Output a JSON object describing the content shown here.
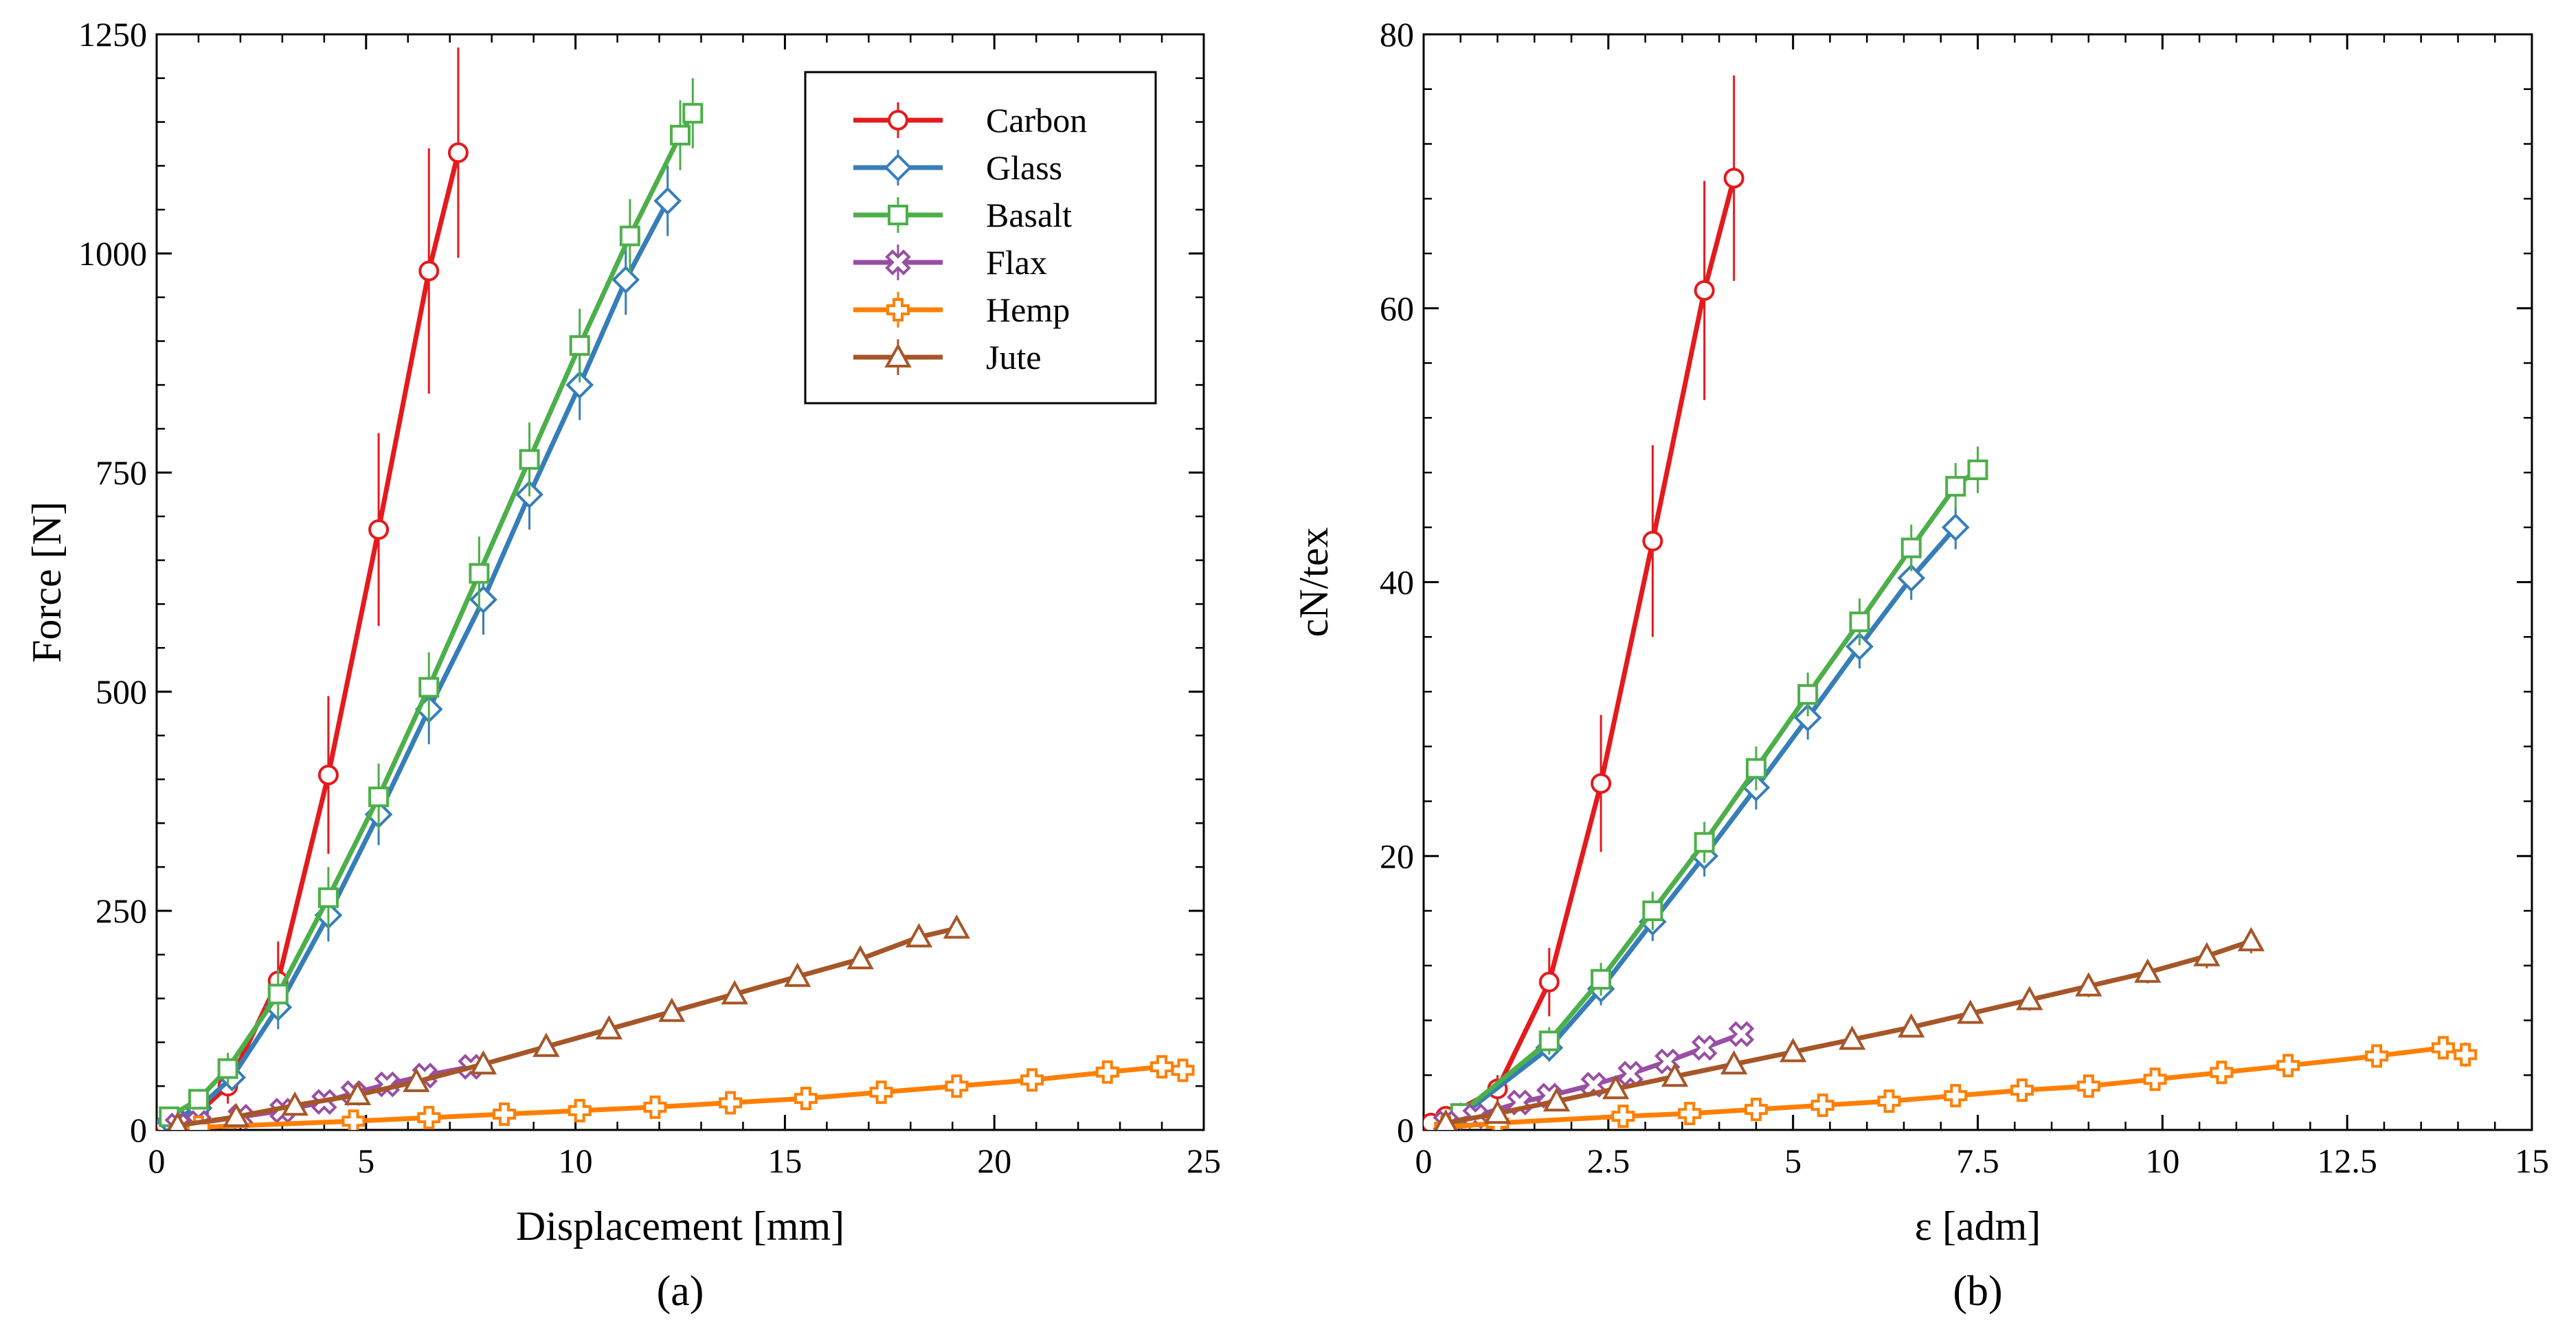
{
  "legend": {
    "placement": "top-right",
    "entries": [
      {
        "name": "Carbon",
        "color": "#e41a1c",
        "marker": "circle"
      },
      {
        "name": "Glass",
        "color": "#377eb8",
        "marker": "diamond"
      },
      {
        "name": "Basalt",
        "color": "#4daf4a",
        "marker": "square"
      },
      {
        "name": "Flax",
        "color": "#984ea3",
        "marker": "x"
      },
      {
        "name": "Hemp",
        "color": "#ff7f00",
        "marker": "plus"
      },
      {
        "name": "Jute",
        "color": "#a65628",
        "marker": "triangle"
      }
    ]
  },
  "chart_data": [
    {
      "type": "line",
      "panel_label": "(a)",
      "xlabel": "Displacement [mm]",
      "ylabel": "Force [N]",
      "xlim": [
        0,
        25
      ],
      "ylim": [
        0,
        1250
      ],
      "xticks": [
        0,
        5,
        10,
        15,
        20,
        25
      ],
      "yticks": [
        0,
        250,
        500,
        750,
        1000,
        1250
      ],
      "grid": false,
      "series": [
        {
          "name": "Carbon",
          "x": [
            0.2,
            0.5,
            1.0,
            1.7,
            2.9,
            4.1,
            5.3,
            6.5,
            7.2
          ],
          "y": [
            5,
            12,
            20,
            50,
            170,
            405,
            685,
            980,
            1115
          ],
          "err": [
            3,
            5,
            8,
            20,
            45,
            90,
            110,
            140,
            120
          ]
        },
        {
          "name": "Glass",
          "x": [
            0.3,
            1.0,
            1.8,
            2.9,
            4.1,
            5.3,
            6.5,
            7.8,
            8.9,
            10.1,
            11.2,
            12.2
          ],
          "y": [
            10,
            25,
            60,
            140,
            245,
            360,
            480,
            605,
            725,
            850,
            970,
            1060
          ],
          "err": [
            5,
            8,
            15,
            25,
            30,
            35,
            40,
            40,
            40,
            40,
            40,
            40
          ]
        },
        {
          "name": "Basalt",
          "x": [
            0.3,
            1.0,
            1.7,
            2.9,
            4.1,
            5.3,
            6.5,
            7.7,
            8.9,
            10.1,
            11.3,
            12.5,
            12.8
          ],
          "y": [
            15,
            35,
            70,
            155,
            265,
            380,
            505,
            635,
            765,
            895,
            1020,
            1135,
            1160
          ],
          "err": [
            5,
            10,
            18,
            28,
            35,
            38,
            40,
            42,
            42,
            42,
            42,
            40,
            40
          ]
        },
        {
          "name": "Flax",
          "x": [
            0.5,
            1.0,
            2.0,
            3.0,
            4.0,
            4.7,
            5.5,
            6.4,
            7.5
          ],
          "y": [
            5,
            8,
            15,
            22,
            32,
            42,
            52,
            62,
            72
          ],
          "err": [
            3,
            3,
            5,
            6,
            7,
            7,
            8,
            8,
            8
          ]
        },
        {
          "name": "Hemp",
          "x": [
            1.0,
            4.7,
            6.5,
            8.3,
            10.1,
            11.9,
            13.7,
            15.5,
            17.3,
            19.1,
            20.9,
            22.7,
            24.0,
            24.5
          ],
          "y": [
            3,
            10,
            14,
            18,
            22,
            26,
            31,
            36,
            43,
            50,
            57,
            66,
            72,
            68
          ],
          "err": [
            2,
            3,
            4,
            4,
            4,
            5,
            5,
            5,
            6,
            6,
            7,
            8,
            10,
            12
          ]
        },
        {
          "name": "Jute",
          "x": [
            0.5,
            1.9,
            3.3,
            4.8,
            6.2,
            7.8,
            9.3,
            10.8,
            12.3,
            13.8,
            15.3,
            16.8,
            18.2,
            19.1
          ],
          "y": [
            5,
            15,
            28,
            40,
            55,
            75,
            95,
            115,
            135,
            155,
            175,
            195,
            220,
            230
          ],
          "err": [
            3,
            4,
            5,
            6,
            6,
            7,
            7,
            8,
            8,
            8,
            9,
            9,
            10,
            10
          ]
        }
      ]
    },
    {
      "type": "line",
      "panel_label": "(b)",
      "xlabel": "ε [adm]",
      "ylabel": "cN/tex",
      "xlim": [
        0,
        15
      ],
      "ylim": [
        0,
        80
      ],
      "xticks": [
        0,
        2.5,
        5,
        7.5,
        10,
        12.5,
        15
      ],
      "yticks": [
        0,
        20,
        40,
        60,
        80
      ],
      "grid": false,
      "series": [
        {
          "name": "Carbon",
          "x": [
            0.1,
            0.3,
            1.0,
            1.7,
            2.4,
            3.1,
            3.8,
            4.2
          ],
          "y": [
            0.5,
            1.0,
            3.0,
            10.8,
            25.3,
            43.0,
            61.3,
            69.5
          ],
          "err": [
            0.3,
            0.5,
            1.0,
            2.5,
            5.0,
            7.0,
            8.0,
            7.5
          ]
        },
        {
          "name": "Glass",
          "x": [
            0.5,
            1.7,
            2.4,
            3.1,
            3.8,
            4.5,
            5.2,
            5.9,
            6.6,
            7.2
          ],
          "y": [
            1.0,
            6.0,
            10.3,
            15.2,
            20.0,
            25.0,
            30.1,
            35.3,
            40.3,
            44.0
          ],
          "err": [
            0.5,
            1.0,
            1.2,
            1.4,
            1.5,
            1.6,
            1.6,
            1.6,
            1.6,
            1.6
          ]
        },
        {
          "name": "Basalt",
          "x": [
            0.5,
            1.7,
            2.4,
            3.1,
            3.8,
            4.5,
            5.2,
            5.9,
            6.6,
            7.2,
            7.5
          ],
          "y": [
            1.2,
            6.5,
            11.0,
            16.0,
            21.0,
            26.4,
            31.8,
            37.1,
            42.5,
            47.0,
            48.2
          ],
          "err": [
            0.5,
            1.0,
            1.2,
            1.4,
            1.5,
            1.6,
            1.6,
            1.7,
            1.7,
            1.7,
            1.7
          ]
        },
        {
          "name": "Flax",
          "x": [
            0.3,
            0.7,
            1.3,
            1.7,
            2.3,
            2.8,
            3.3,
            3.8,
            4.3
          ],
          "y": [
            0.5,
            1.0,
            2.0,
            2.5,
            3.3,
            4.1,
            5.0,
            6.0,
            7.0
          ],
          "err": [
            0.3,
            0.3,
            0.4,
            0.4,
            0.5,
            0.5,
            0.5,
            0.5,
            0.5
          ]
        },
        {
          "name": "Hemp",
          "x": [
            0.3,
            1.0,
            2.7,
            3.6,
            4.5,
            5.4,
            6.3,
            7.2,
            8.1,
            9.0,
            9.9,
            10.8,
            11.7,
            12.9,
            13.8,
            14.1
          ],
          "y": [
            0.2,
            0.5,
            1.0,
            1.2,
            1.5,
            1.8,
            2.1,
            2.5,
            2.9,
            3.2,
            3.7,
            4.2,
            4.7,
            5.4,
            6.0,
            5.5
          ],
          "err": [
            0.2,
            0.2,
            0.3,
            0.3,
            0.3,
            0.3,
            0.4,
            0.4,
            0.4,
            0.4,
            0.5,
            0.5,
            0.6,
            0.7,
            0.8,
            0.9
          ]
        },
        {
          "name": "Jute",
          "x": [
            0.3,
            1.0,
            1.8,
            2.6,
            3.4,
            4.2,
            5.0,
            5.8,
            6.6,
            7.4,
            8.2,
            9.0,
            9.8,
            10.6,
            11.2
          ],
          "y": [
            0.5,
            1.2,
            2.1,
            3.0,
            3.9,
            4.8,
            5.7,
            6.6,
            7.5,
            8.5,
            9.5,
            10.5,
            11.5,
            12.7,
            13.8
          ],
          "err": [
            0.3,
            0.4,
            0.5,
            0.5,
            0.6,
            0.6,
            0.6,
            0.7,
            0.7,
            0.7,
            0.8,
            0.8,
            0.8,
            0.9,
            0.9
          ]
        }
      ]
    }
  ]
}
